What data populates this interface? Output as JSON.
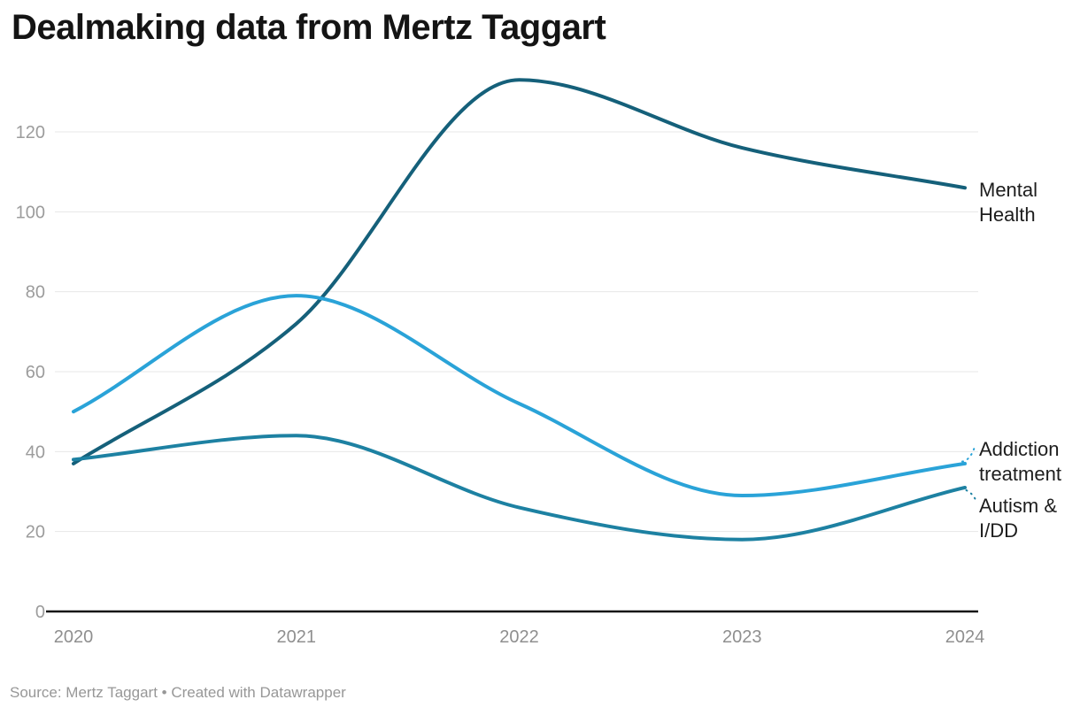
{
  "header": {
    "title": "Dealmaking data from Mertz Taggart"
  },
  "footer": {
    "source": "Source: Mertz Taggart • Created with Datawrapper"
  },
  "chart_data": {
    "type": "line",
    "title": "Dealmaking data from Mertz Taggart",
    "x": [
      "2020",
      "2021",
      "2022",
      "2023",
      "2024"
    ],
    "series": [
      {
        "name": "Mental Health",
        "label_lines": [
          "Mental",
          "Health"
        ],
        "color": "#15607a",
        "values": [
          37,
          72,
          133,
          116,
          106
        ]
      },
      {
        "name": "Addiction treatment",
        "label_lines": [
          "Addiction",
          "treatment"
        ],
        "color": "#2aa3d8",
        "values": [
          50,
          79,
          52,
          29,
          37
        ]
      },
      {
        "name": "Autism & I/DD",
        "label_lines": [
          "Autism &",
          "I/DD"
        ],
        "color": "#1d81a2",
        "values": [
          38,
          44,
          26,
          18,
          31
        ]
      }
    ],
    "y_ticks": [
      0,
      20,
      40,
      60,
      80,
      100,
      120
    ],
    "ylim": [
      0,
      140
    ],
    "xlabel": "",
    "ylabel": "",
    "grid": "horizontal",
    "legend_position": "right-edge-line-labels",
    "axis_color": "#141414",
    "grid_color": "#e7e7e7",
    "tick_label_color": "#9c9c9c"
  }
}
